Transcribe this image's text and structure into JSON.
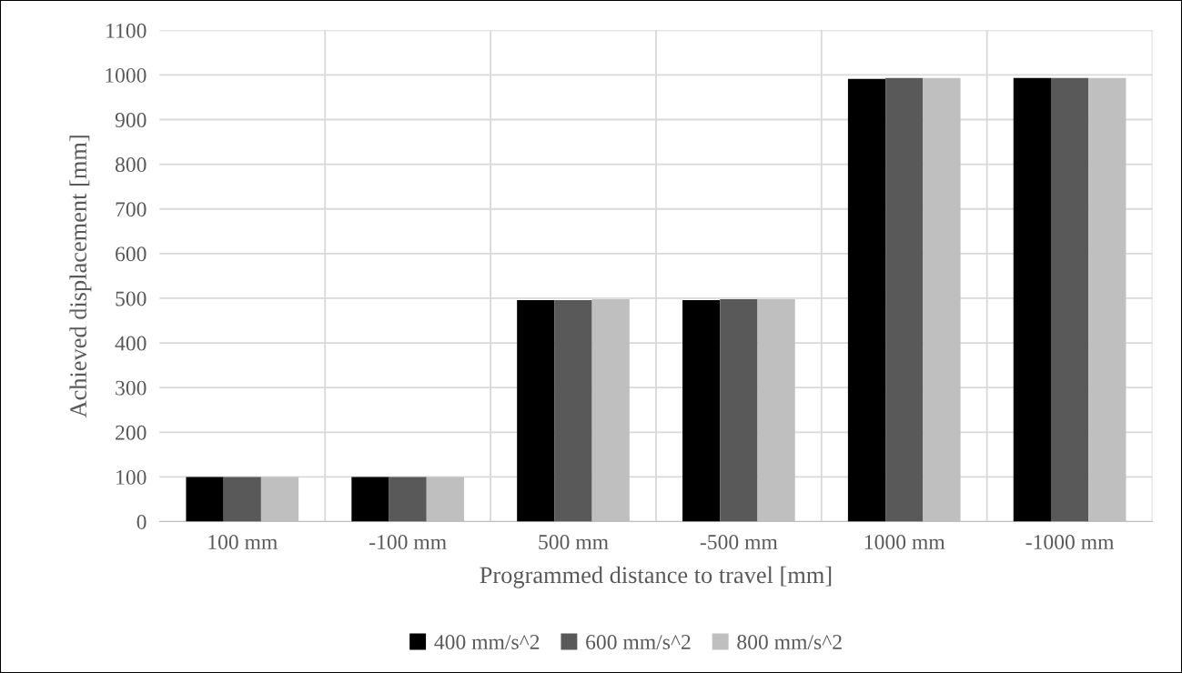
{
  "chart_data": {
    "type": "bar",
    "xlabel": "Programmed distance to travel [mm]",
    "ylabel": "Achieved displacement [mm]",
    "categories": [
      "100 mm",
      "-100 mm",
      "500 mm",
      "-500 mm",
      "1000 mm",
      "-1000 mm"
    ],
    "series": [
      {
        "name": "400 mm/s^2",
        "color": "#000000",
        "values": [
          100,
          100,
          496,
          496,
          991,
          993
        ]
      },
      {
        "name": "600 mm/s^2",
        "color": "#595959",
        "values": [
          100,
          100,
          496,
          498,
          993,
          993
        ]
      },
      {
        "name": "800 mm/s^2",
        "color": "#bfbfbf",
        "values": [
          100,
          100,
          498,
          498,
          993,
          993
        ]
      }
    ],
    "ylim": [
      0,
      1100
    ],
    "yticks": [
      0,
      100,
      200,
      300,
      400,
      500,
      600,
      700,
      800,
      900,
      1000,
      1100
    ],
    "grid": true,
    "legend": "bottom"
  }
}
